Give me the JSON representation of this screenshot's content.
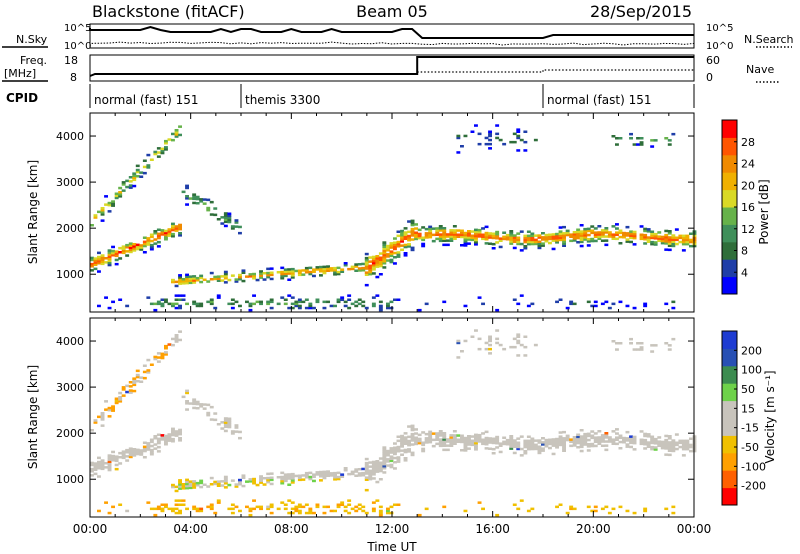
{
  "header": {
    "station": "Blackstone (fitACF)",
    "beam": "Beam 05",
    "date": "28/Sep/2015"
  },
  "summary_panels": {
    "nsky_label": "N.Sky",
    "nsky_ticks": [
      "10^5",
      "10^0"
    ],
    "nsearch_label": "N.Search",
    "nsearch_ticks": [
      "10^5",
      "10^0"
    ],
    "freq_label": "Freq.",
    "freq_unit": "[MHz]",
    "freq_ticks": [
      "18",
      "8"
    ],
    "nave_label": "Nave",
    "nave_ticks": [
      "60",
      "0"
    ],
    "cpid_label": "CPID",
    "cpid_segments": [
      {
        "name": "normal (fast) 151",
        "start_h": 0,
        "end_h": 6
      },
      {
        "name": "themis 3300",
        "start_h": 6,
        "end_h": 18
      },
      {
        "name": "normal (fast) 151",
        "start_h": 18,
        "end_h": 24
      }
    ]
  },
  "colors": {
    "power_scale": [
      "#0000ff",
      "#1f3ea8",
      "#2f6e3a",
      "#3f8f5a",
      "#66b24a",
      "#d9d926",
      "#f0b000",
      "#f08a00",
      "#ff5500",
      "#ff0000"
    ],
    "velocity_scale": [
      "#ff0000",
      "#ff6000",
      "#ffa000",
      "#f0c000",
      "#c8c4bc",
      "#c8c4bc",
      "#6ed24a",
      "#3c8c50",
      "#2850b4",
      "#1e3cd2"
    ]
  },
  "chart_data": [
    {
      "type": "heatmap",
      "name": "power",
      "xlabel": "",
      "ylabel": "Slant Range [km]",
      "xlim": [
        0,
        24
      ],
      "ylim": [
        180,
        4500
      ],
      "yticks": [
        "1000",
        "2000",
        "3000",
        "4000"
      ],
      "colorbar_label": "Power [dB]",
      "colorbar_ticks": [
        "4",
        "8",
        "12",
        "16",
        "20",
        "24",
        "28"
      ],
      "colorbar_range": [
        0,
        30
      ]
    },
    {
      "type": "heatmap",
      "name": "velocity",
      "xlabel": "Time UT",
      "ylabel": "Slant Range [km]",
      "xlim": [
        0,
        24
      ],
      "ylim": [
        180,
        4500
      ],
      "xticks": [
        "00:00",
        "04:00",
        "08:00",
        "12:00",
        "16:00",
        "20:00",
        "00:00"
      ],
      "yticks": [
        "1000",
        "2000",
        "3000",
        "4000"
      ],
      "colorbar_label": "Velocity [m s⁻¹]",
      "colorbar_ticks": [
        "200",
        "100",
        "50",
        "15",
        "-15",
        "-50",
        "-100",
        "-200"
      ]
    }
  ]
}
